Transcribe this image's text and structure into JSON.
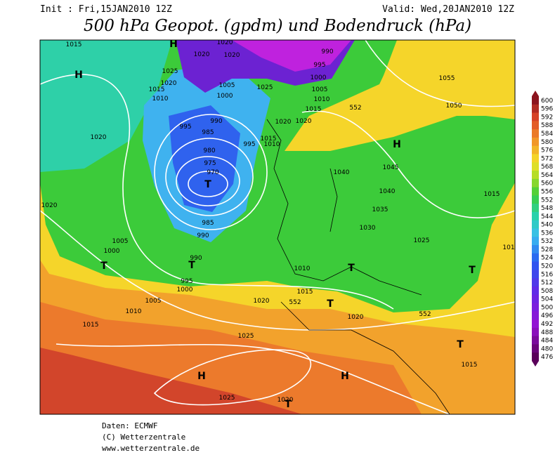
{
  "header": {
    "init": "Init : Fri,15JAN2010 12Z",
    "valid": "Valid: Wed,20JAN2010 12Z",
    "title": "500 hPa Geopot. (gpdm) und Bodendruck (hPa)"
  },
  "map": {
    "isobar_labels": [
      "1015",
      "1020",
      "1020",
      "1020",
      "990",
      "995",
      "1000",
      "1005",
      "1025",
      "1020",
      "1015",
      "1010",
      "1005",
      "1000",
      "1025",
      "1015",
      "1010",
      "552",
      "1055",
      "1050",
      "1020",
      "1020",
      "990",
      "995",
      "985",
      "995",
      "1015",
      "1010",
      "980",
      "975",
      "970",
      "1020",
      "1045",
      "1040",
      "1040",
      "1035",
      "1030",
      "1015",
      "1020",
      "985",
      "990",
      "1005",
      "1000",
      "1025",
      "990",
      "995",
      "1000",
      "1010",
      "1015",
      "1005",
      "1020",
      "552",
      "1010",
      "552",
      "1020",
      "1015",
      "1025",
      "1015",
      "1025",
      "1020",
      "101"
    ],
    "pressure_centers": [
      "H",
      "H",
      "T",
      "H",
      "T",
      "T",
      "T",
      "T",
      "T",
      "T",
      "H",
      "H",
      "T"
    ]
  },
  "colorbar": {
    "labels": [
      600,
      596,
      592,
      588,
      584,
      580,
      576,
      572,
      568,
      564,
      560,
      556,
      552,
      548,
      544,
      540,
      536,
      532,
      528,
      524,
      520,
      516,
      512,
      508,
      504,
      500,
      496,
      492,
      488,
      484,
      480,
      476
    ]
  },
  "footer": {
    "lines": [
      "Daten: ECMWF",
      "(C) Wetterzentrale",
      "www.wetterzentrale.de"
    ]
  }
}
